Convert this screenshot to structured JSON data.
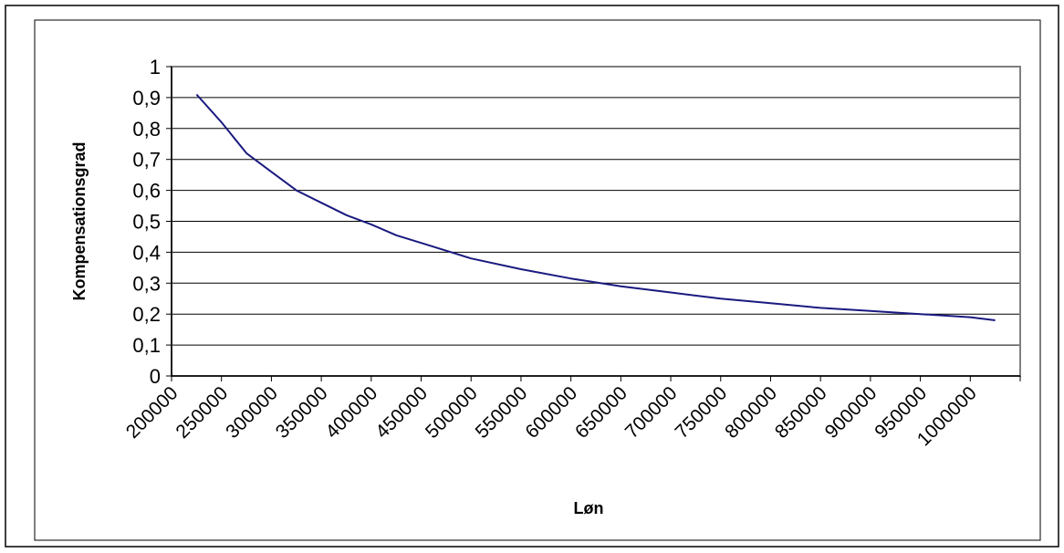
{
  "chart_data": {
    "type": "line",
    "xlabel": "Løn",
    "ylabel": "Kompensationsgrad",
    "xlim": [
      200000,
      1050000
    ],
    "ylim": [
      0,
      1
    ],
    "grid": "horizontal",
    "legend": "none",
    "colors": {
      "line": "#1a1a80",
      "grid": "#000000",
      "plot_border": "#808080",
      "frame": "#000000"
    },
    "x_ticks": [
      "200000",
      "250000",
      "300000",
      "350000",
      "400000",
      "450000",
      "500000",
      "550000",
      "600000",
      "650000",
      "700000",
      "750000",
      "800000",
      "850000",
      "900000",
      "950000",
      "1000000"
    ],
    "y_ticks": [
      "0",
      "0,1",
      "0,2",
      "0,3",
      "0,4",
      "0,5",
      "0,6",
      "0,7",
      "0,8",
      "0,9",
      "1"
    ],
    "series": [
      {
        "x": [
          225000,
          250000,
          275000,
          300000,
          325000,
          350000,
          375000,
          400000,
          425000,
          450000,
          500000,
          550000,
          600000,
          650000,
          700000,
          750000,
          800000,
          850000,
          900000,
          950000,
          1000000,
          1025000
        ],
        "values": [
          0.91,
          0.82,
          0.72,
          0.66,
          0.6,
          0.56,
          0.52,
          0.49,
          0.455,
          0.43,
          0.38,
          0.345,
          0.315,
          0.29,
          0.27,
          0.25,
          0.235,
          0.22,
          0.21,
          0.2,
          0.19,
          0.18
        ]
      }
    ]
  }
}
